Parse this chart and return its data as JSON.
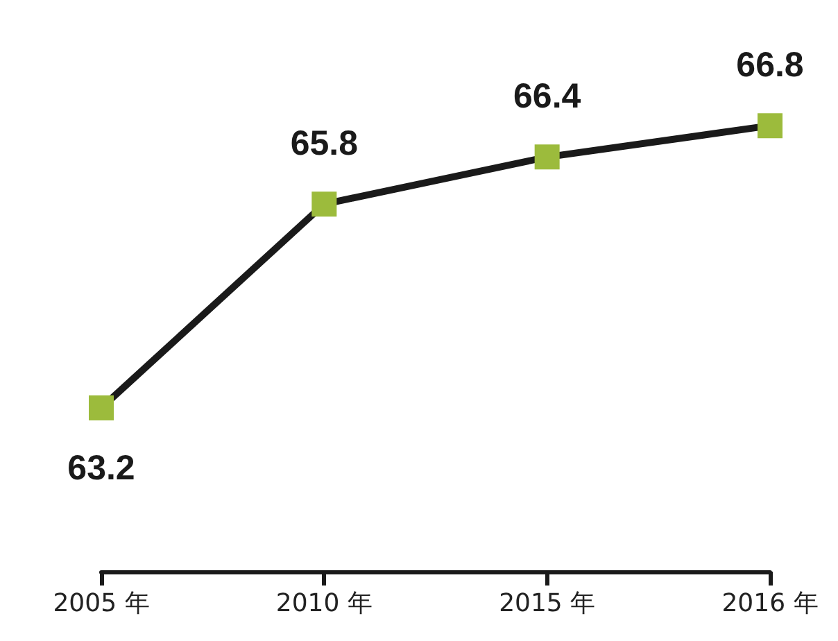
{
  "chart_data": {
    "type": "line",
    "categories": [
      "2005 年",
      "2010 年",
      "2015 年",
      "2016 年"
    ],
    "series": [
      {
        "color": "#1a1a1a",
        "colors": [
          "#9cbb3c",
          "#9cbb3c",
          "#9cbb3c",
          "#9cbb3c"
        ],
        "values": [
          63.2,
          65.8,
          66.4,
          66.8
        ]
      }
    ],
    "tick_labels": "x",
    "data_labels": true,
    "marker": "square",
    "line_style": "solid"
  }
}
